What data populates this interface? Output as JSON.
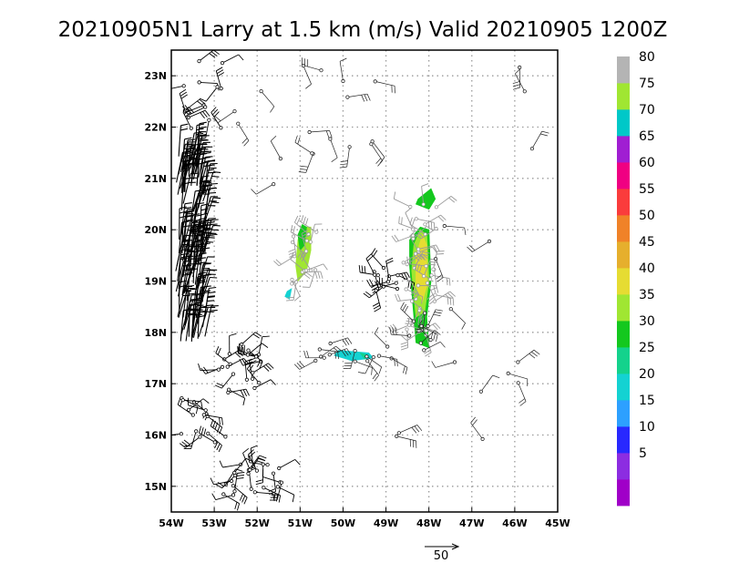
{
  "chart_data": {
    "type": "wind-barb-map",
    "title": "20210905N1 Larry at 1.5 km (m/s) Valid 20210905 1200Z",
    "lon_range": [
      -54,
      -45
    ],
    "lat_range": [
      14.5,
      23.5
    ],
    "x_ticks": [
      {
        "lon": -54,
        "label": "54W"
      },
      {
        "lon": -53,
        "label": "53W"
      },
      {
        "lon": -52,
        "label": "52W"
      },
      {
        "lon": -51,
        "label": "51W"
      },
      {
        "lon": -50,
        "label": "50W"
      },
      {
        "lon": -49,
        "label": "49W"
      },
      {
        "lon": -48,
        "label": "48W"
      },
      {
        "lon": -47,
        "label": "47W"
      },
      {
        "lon": -46,
        "label": "46W"
      },
      {
        "lon": -45,
        "label": "45W"
      }
    ],
    "y_ticks": [
      {
        "lat": 15,
        "label": "15N"
      },
      {
        "lat": 16,
        "label": "16N"
      },
      {
        "lat": 17,
        "label": "17N"
      },
      {
        "lat": 18,
        "label": "18N"
      },
      {
        "lat": 19,
        "label": "19N"
      },
      {
        "lat": 20,
        "label": "20N"
      },
      {
        "lat": 21,
        "label": "21N"
      },
      {
        "lat": 22,
        "label": "22N"
      },
      {
        "lat": 23,
        "label": "23N"
      }
    ],
    "grid": true,
    "colorbar": {
      "levels": [
        {
          "label": "",
          "color": "#a000c8"
        },
        {
          "label": "5",
          "color": "#8c2de1"
        },
        {
          "label": "10",
          "color": "#2828ff"
        },
        {
          "label": "15",
          "color": "#2da0ff"
        },
        {
          "label": "20",
          "color": "#14d2d2"
        },
        {
          "label": "25",
          "color": "#14d28c"
        },
        {
          "label": "30",
          "color": "#14c81e"
        },
        {
          "label": "35",
          "color": "#a0e632"
        },
        {
          "label": "40",
          "color": "#e6dc32"
        },
        {
          "label": "45",
          "color": "#e6af2d"
        },
        {
          "label": "50",
          "color": "#f08228"
        },
        {
          "label": "55",
          "color": "#fa3c3c"
        },
        {
          "label": "60",
          "color": "#f00082"
        },
        {
          "label": "65",
          "color": "#a01ed2"
        },
        {
          "label": "70",
          "color": "#00c8c8"
        },
        {
          "label": "75",
          "color": "#a0e632"
        },
        {
          "label": "80",
          "color": "#b4b4b4"
        }
      ]
    },
    "reference_vector": {
      "label": "50",
      "speed": 50
    },
    "wind_swaths": [
      {
        "color": "#a0e632",
        "points": [
          [
            -50.95,
            20.05
          ],
          [
            -50.75,
            20.05
          ],
          [
            -50.75,
            19.6
          ],
          [
            -50.85,
            19.2
          ],
          [
            -51.05,
            19.0
          ],
          [
            -51.1,
            19.3
          ],
          [
            -51.05,
            19.8
          ]
        ]
      },
      {
        "color": "#14c81e",
        "points": [
          [
            -50.95,
            20.1
          ],
          [
            -50.85,
            20.05
          ],
          [
            -50.9,
            19.7
          ],
          [
            -51.0,
            19.6
          ],
          [
            -51.05,
            19.9
          ]
        ]
      },
      {
        "color": "#14d2d2",
        "points": [
          [
            -51.3,
            18.8
          ],
          [
            -51.2,
            18.85
          ],
          [
            -51.25,
            18.65
          ],
          [
            -51.35,
            18.7
          ]
        ]
      },
      {
        "color": "#14d2d2",
        "points": [
          [
            -50.1,
            17.65
          ],
          [
            -49.4,
            17.6
          ],
          [
            -49.3,
            17.5
          ],
          [
            -49.8,
            17.45
          ],
          [
            -50.2,
            17.55
          ]
        ]
      },
      {
        "color": "#14d28c",
        "points": [
          [
            -49.6,
            17.6
          ],
          [
            -49.4,
            17.55
          ],
          [
            -49.5,
            17.48
          ]
        ]
      },
      {
        "color": "#14c81e",
        "points": [
          [
            -48.25,
            20.6
          ],
          [
            -47.95,
            20.8
          ],
          [
            -47.85,
            20.6
          ],
          [
            -48.0,
            20.4
          ],
          [
            -48.3,
            20.5
          ]
        ]
      },
      {
        "color": "#14c81e",
        "points": [
          [
            -48.2,
            20.05
          ],
          [
            -48.0,
            20.0
          ],
          [
            -47.95,
            19.0
          ],
          [
            -48.05,
            18.3
          ],
          [
            -48.0,
            17.7
          ],
          [
            -48.3,
            17.8
          ],
          [
            -48.35,
            18.3
          ],
          [
            -48.45,
            19.3
          ],
          [
            -48.45,
            19.8
          ]
        ]
      },
      {
        "color": "#a0e632",
        "points": [
          [
            -48.2,
            20.0
          ],
          [
            -48.05,
            19.9
          ],
          [
            -48.0,
            19.0
          ],
          [
            -48.1,
            18.4
          ],
          [
            -48.3,
            18.3
          ],
          [
            -48.4,
            19.2
          ],
          [
            -48.35,
            19.7
          ]
        ]
      },
      {
        "color": "#e6dc32",
        "points": [
          [
            -48.15,
            19.9
          ],
          [
            -48.05,
            19.7
          ],
          [
            -48.05,
            18.9
          ],
          [
            -48.15,
            18.6
          ],
          [
            -48.3,
            18.9
          ],
          [
            -48.3,
            19.5
          ]
        ]
      }
    ],
    "barb_regions": [
      {
        "lon": [
          -53.9,
          -53.2
        ],
        "lat": [
          17.8,
          21.5
        ],
        "count": 140,
        "style": "dense"
      },
      {
        "lon": [
          -53.9,
          -52.8
        ],
        "lat": [
          21.8,
          23.3
        ],
        "count": 14,
        "style": "black"
      },
      {
        "lon": [
          -52.9,
          -51.9
        ],
        "lat": [
          16.8,
          17.8
        ],
        "count": 22,
        "style": "black"
      },
      {
        "lon": [
          -53.8,
          -52.6
        ],
        "lat": [
          15.8,
          16.8
        ],
        "count": 14,
        "style": "black"
      },
      {
        "lon": [
          -52.8,
          -51.4
        ],
        "lat": [
          14.8,
          15.5
        ],
        "count": 24,
        "style": "black"
      },
      {
        "lon": [
          -51.2,
          -50.6
        ],
        "lat": [
          18.9,
          20.0
        ],
        "count": 16,
        "style": "gray"
      },
      {
        "lon": [
          -49.3,
          -48.7
        ],
        "lat": [
          18.8,
          19.3
        ],
        "count": 12,
        "style": "black"
      },
      {
        "lon": [
          -48.6,
          -47.8
        ],
        "lat": [
          17.8,
          20.6
        ],
        "count": 40,
        "style": "gray"
      },
      {
        "lon": [
          -50.8,
          -48.8
        ],
        "lat": [
          17.4,
          17.8
        ],
        "count": 14,
        "style": "thin"
      },
      {
        "lon": [
          -48.6,
          -47.8
        ],
        "lat": [
          17.6,
          18.4
        ],
        "count": 8,
        "style": "thin"
      },
      {
        "lon": [
          -49.5,
          -45.2
        ],
        "lat": [
          15.8,
          23.3
        ],
        "count": 18,
        "style": "sparse"
      },
      {
        "lon": [
          -52.8,
          -49.8
        ],
        "lat": [
          20.6,
          23.3
        ],
        "count": 14,
        "style": "sparse"
      }
    ]
  }
}
